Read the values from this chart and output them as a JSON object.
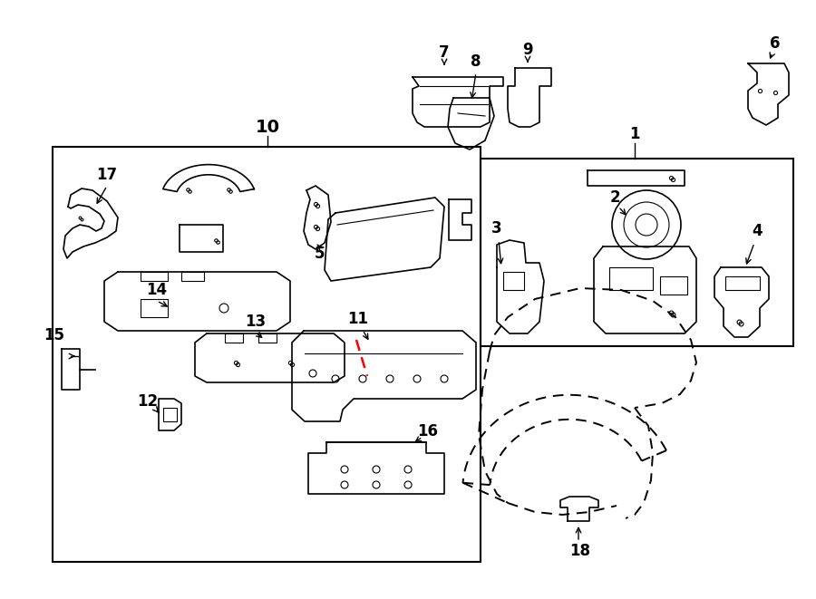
{
  "bg_color": "#ffffff",
  "line_color": "#000000",
  "red_color": "#ff0000",
  "fig_width": 9.0,
  "fig_height": 6.61,
  "dpi": 100
}
